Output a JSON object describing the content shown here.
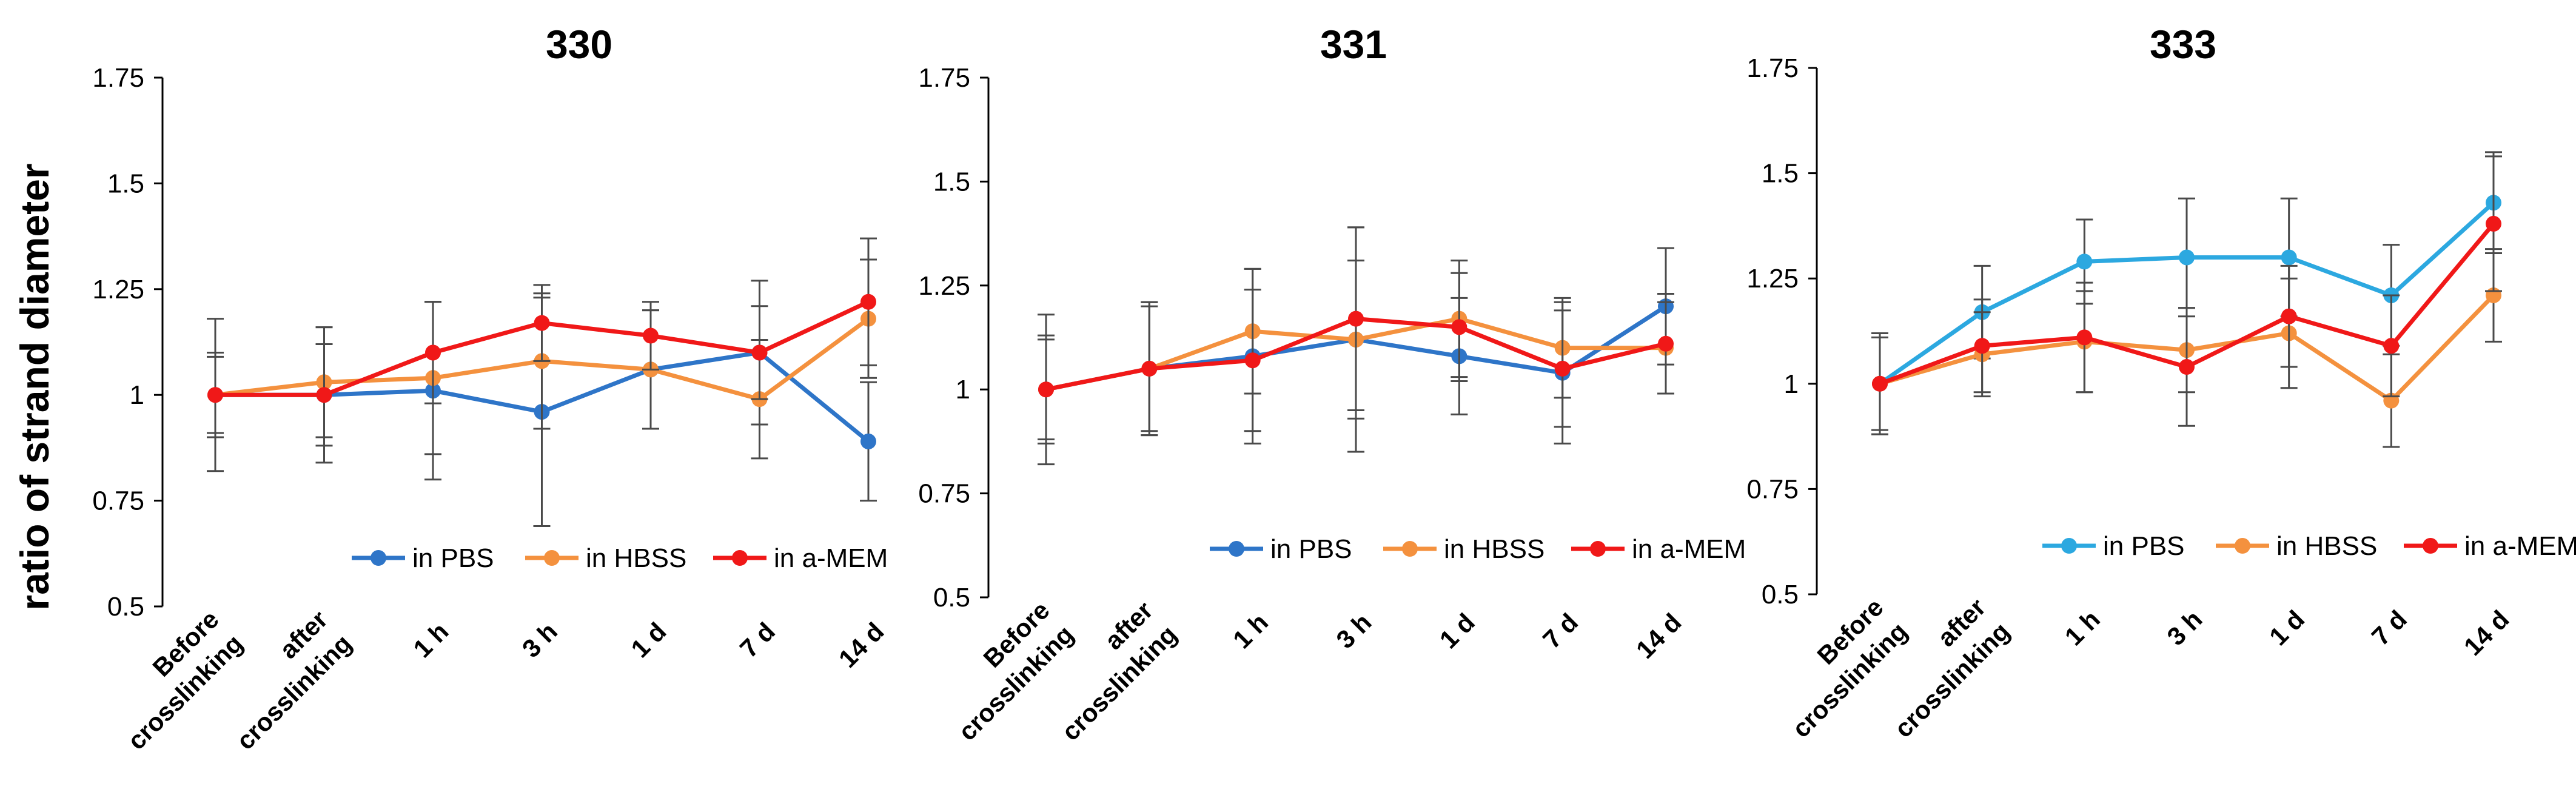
{
  "figure": {
    "ylabel": "ratio of strand diameter"
  },
  "chart_data": [
    {
      "type": "line",
      "title": "330",
      "ylabel": "ratio of strand diameter",
      "xlabel": "",
      "ylim": [
        0.5,
        1.75
      ],
      "yticks": [
        "0.5",
        "0.75",
        "1",
        "1.25",
        "1.5",
        "1.75"
      ],
      "categories": [
        [
          "Before",
          "crosslinking"
        ],
        [
          "after",
          "crosslinking"
        ],
        [
          "1 h"
        ],
        [
          "3 h"
        ],
        [
          "1 d"
        ],
        [
          "7 d"
        ],
        [
          "14 d"
        ]
      ],
      "legend_position": "bottom-right",
      "series": [
        {
          "name": "in PBS",
          "color": "#2E75C8",
          "values": [
            1.0,
            1.0,
            1.01,
            0.96,
            1.06,
            1.1,
            0.89
          ],
          "err": [
            0.18,
            0.16,
            0.21,
            0.27,
            0.14,
            0.17,
            0.14
          ]
        },
        {
          "name": "in HBSS",
          "color": "#F4913E",
          "values": [
            1.0,
            1.03,
            1.04,
            1.08,
            1.06,
            0.99,
            1.18
          ],
          "err": [
            0.09,
            0.13,
            0.18,
            0.16,
            0.14,
            0.14,
            0.14
          ]
        },
        {
          "name": "in a-MEM",
          "color": "#F01818",
          "values": [
            1.0,
            1.0,
            1.1,
            1.17,
            1.14,
            1.1,
            1.22
          ],
          "err": [
            0.1,
            0.12,
            0.12,
            0.09,
            0.08,
            0.11,
            0.15
          ]
        }
      ]
    },
    {
      "type": "line",
      "title": "331",
      "ylabel": "",
      "xlabel": "",
      "ylim": [
        0.5,
        1.75
      ],
      "yticks": [
        "0.5",
        "0.75",
        "1",
        "1.25",
        "1.5",
        "1.75"
      ],
      "categories": [
        [
          "Before",
          "crosslinking"
        ],
        [
          "after",
          "crosslinking"
        ],
        [
          "1 h"
        ],
        [
          "3 h"
        ],
        [
          "1 d"
        ],
        [
          "7 d"
        ],
        [
          "14 d"
        ]
      ],
      "legend_position": "bottom-right",
      "series": [
        {
          "name": "in PBS",
          "color": "#2E75C8",
          "values": [
            1.0,
            1.05,
            1.08,
            1.12,
            1.08,
            1.04,
            1.2
          ],
          "err": [
            0.18,
            0.16,
            0.21,
            0.27,
            0.14,
            0.17,
            0.14
          ]
        },
        {
          "name": "in HBSS",
          "color": "#F4913E",
          "values": [
            1.0,
            1.05,
            1.14,
            1.12,
            1.17,
            1.1,
            1.1
          ],
          "err": [
            0.12,
            0.15,
            0.15,
            0.19,
            0.14,
            0.12,
            0.11
          ]
        },
        {
          "name": "in a-MEM",
          "color": "#F01818",
          "values": [
            1.0,
            1.05,
            1.07,
            1.17,
            1.15,
            1.05,
            1.11
          ],
          "err": [
            0.13,
            0.16,
            0.17,
            0.22,
            0.13,
            0.14,
            0.12
          ]
        }
      ]
    },
    {
      "type": "line",
      "title": "333",
      "ylabel": "",
      "xlabel": "",
      "ylim": [
        0.5,
        1.75
      ],
      "yticks": [
        "0.5",
        "0.75",
        "1",
        "1.25",
        "1.5",
        "1.75"
      ],
      "categories": [
        [
          "Before",
          "crosslinking"
        ],
        [
          "after",
          "crosslinking"
        ],
        [
          "1 h"
        ],
        [
          "3 h"
        ],
        [
          "1 d"
        ],
        [
          "7 d"
        ],
        [
          "14 d"
        ]
      ],
      "legend_position": "bottom-right",
      "series": [
        {
          "name": "in PBS",
          "color": "#2CA8E0",
          "values": [
            1.0,
            1.17,
            1.29,
            1.3,
            1.3,
            1.21,
            1.43
          ],
          "err": [
            0.12,
            0.11,
            0.1,
            0.14,
            0.14,
            0.12,
            0.12
          ]
        },
        {
          "name": "in HBSS",
          "color": "#F4913E",
          "values": [
            1.0,
            1.07,
            1.1,
            1.08,
            1.12,
            0.96,
            1.21
          ],
          "err": [
            0.11,
            0.1,
            0.12,
            0.1,
            0.13,
            0.11,
            0.11
          ]
        },
        {
          "name": "in a-MEM",
          "color": "#F01818",
          "values": [
            1.0,
            1.09,
            1.11,
            1.04,
            1.16,
            1.09,
            1.38
          ],
          "err": [
            0.12,
            0.11,
            0.13,
            0.14,
            0.12,
            0.12,
            0.16
          ]
        }
      ]
    }
  ]
}
